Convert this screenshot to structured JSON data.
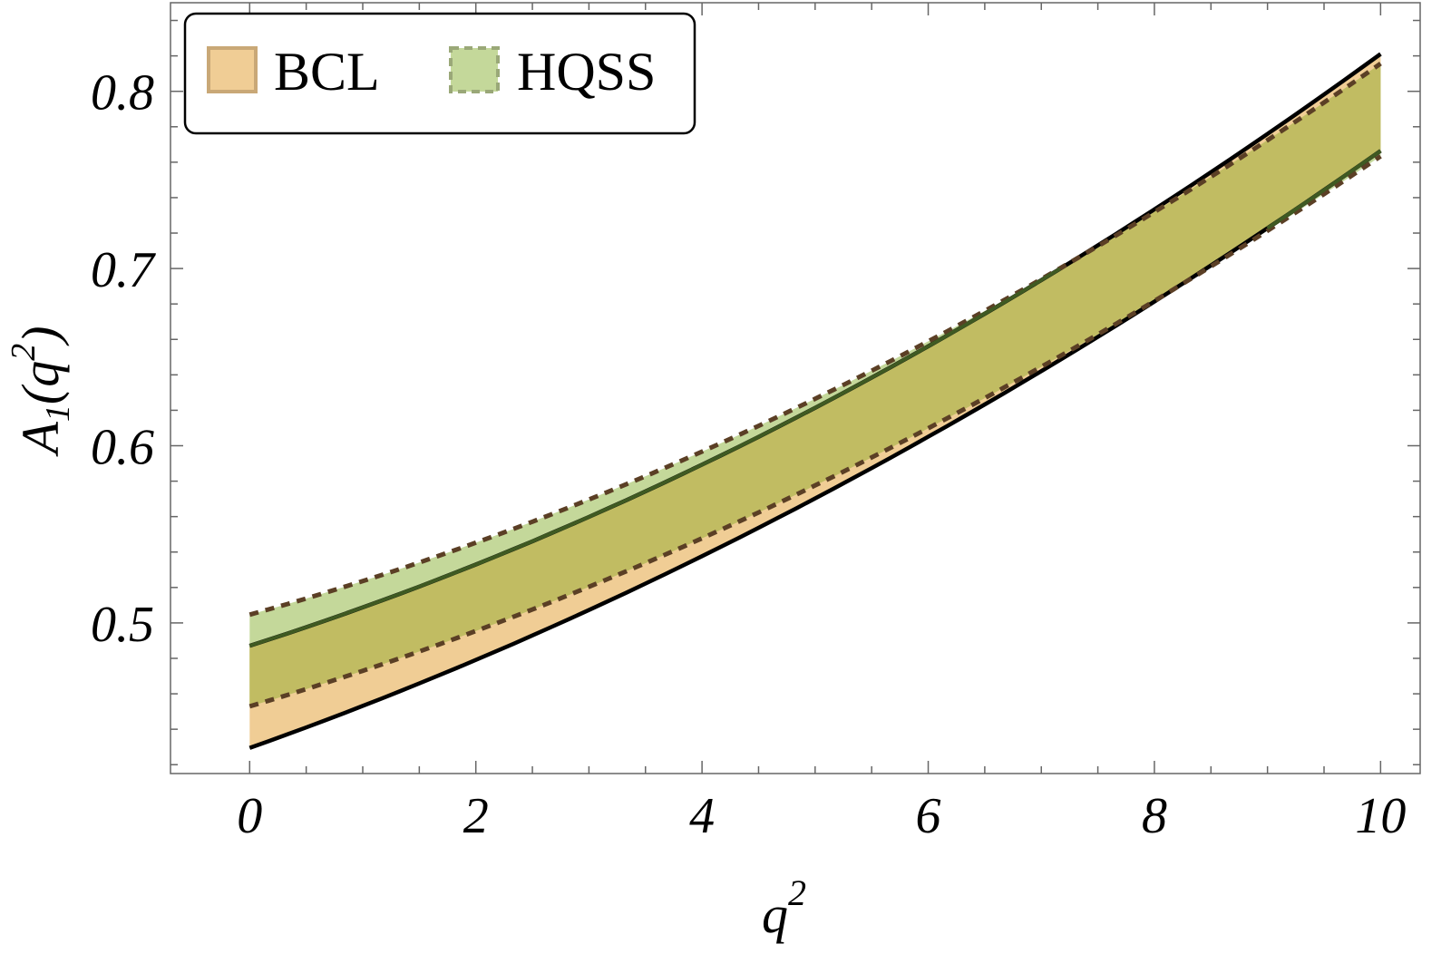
{
  "chart_data": {
    "type": "area",
    "xlabel": "q",
    "xlabel_sup": "2",
    "ylabel_main": "A",
    "ylabel_sub": "1",
    "ylabel_paren_open": "(q",
    "ylabel_sup": "2",
    "ylabel_paren_close": ")",
    "xlim": [
      -0.7,
      10.35
    ],
    "ylim": [
      0.415,
      0.85
    ],
    "xticks": [
      0,
      2,
      4,
      6,
      8,
      10
    ],
    "xtick_labels": [
      "0",
      "2",
      "4",
      "6",
      "8",
      "10"
    ],
    "yticks": [
      0.5,
      0.6,
      0.7,
      0.8
    ],
    "ytick_labels": [
      "0.5",
      "0.6",
      "0.7",
      "0.8"
    ],
    "grid": false,
    "legend_position": "top-left",
    "series": [
      {
        "name": "BCL",
        "color": "#f0cd95",
        "edge_color": "#000000",
        "x": [
          0,
          2,
          4,
          6,
          8,
          10
        ],
        "lower": [
          0.428,
          0.481,
          0.539,
          0.604,
          0.679,
          0.768
        ],
        "upper": [
          0.486,
          0.534,
          0.591,
          0.656,
          0.73,
          0.823
        ]
      },
      {
        "name": "HQSS",
        "color": "#c4d89a",
        "edge_color": "#5b3f25",
        "x": [
          0,
          2,
          4,
          6,
          8,
          10
        ],
        "lower": [
          0.452,
          0.497,
          0.548,
          0.609,
          0.681,
          0.764
        ],
        "upper": [
          0.505,
          0.545,
          0.596,
          0.659,
          0.733,
          0.815
        ]
      }
    ],
    "overlap_color": "#c1bc62",
    "legend_border_color": "#000000",
    "hqss_legend_swatch_edge": "#9aa878"
  }
}
